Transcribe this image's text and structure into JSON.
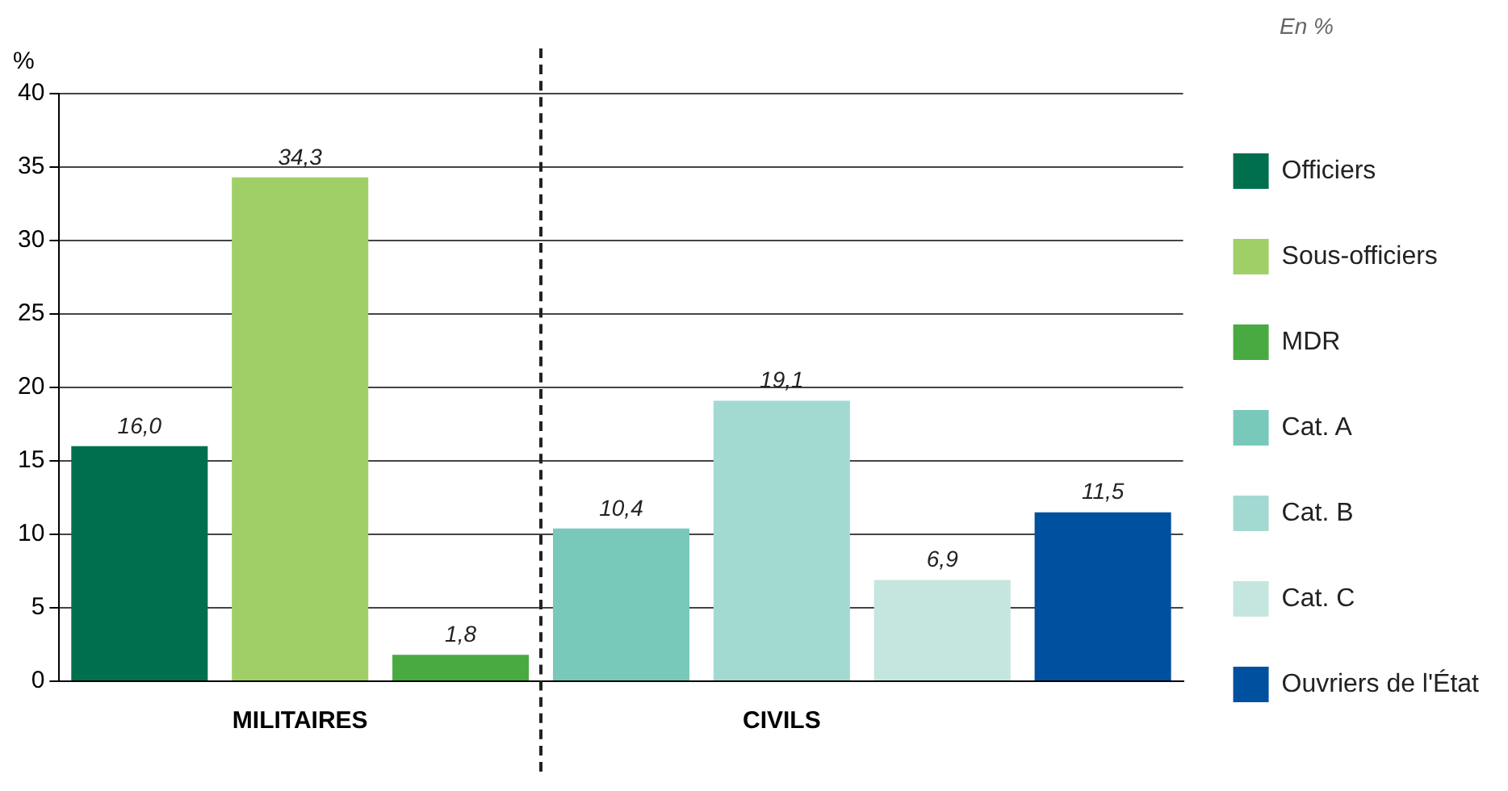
{
  "chart_data": {
    "type": "bar",
    "categories": [
      null,
      "MILITAIRES",
      null,
      null,
      "CIVILS",
      null,
      null
    ],
    "ylabel": "%",
    "annotations": [
      "En %"
    ],
    "ylim": [
      0,
      40
    ],
    "yticks": [
      0,
      5,
      10,
      15,
      20,
      25,
      30,
      35,
      40
    ],
    "grid": "y",
    "legend": "right",
    "series": [
      {
        "name": "Officiers",
        "color": "#006f4e",
        "values": [
          16.0,
          null,
          null,
          null,
          null,
          null,
          null
        ],
        "value_labels": [
          "16,0",
          null,
          null,
          null,
          null,
          null,
          null
        ]
      },
      {
        "name": "Sous-officiers",
        "color": "#a0cf67",
        "values": [
          null,
          34.3,
          null,
          null,
          null,
          null,
          null
        ],
        "value_labels": [
          null,
          "34,3",
          null,
          null,
          null,
          null,
          null
        ]
      },
      {
        "name": "MDR",
        "color": "#4aaa42",
        "values": [
          null,
          null,
          1.8,
          null,
          null,
          null,
          null
        ],
        "value_labels": [
          null,
          null,
          "1,8",
          null,
          null,
          null,
          null
        ]
      },
      {
        "name": "Cat. A",
        "color": "#78c9b9",
        "values": [
          null,
          null,
          null,
          10.4,
          null,
          null,
          null
        ],
        "value_labels": [
          null,
          null,
          null,
          "10,4",
          null,
          null,
          null
        ]
      },
      {
        "name": "Cat. B",
        "color": "#a2dad2",
        "values": [
          null,
          null,
          null,
          null,
          19.1,
          null,
          null
        ],
        "value_labels": [
          null,
          null,
          null,
          null,
          "19,1",
          null,
          null
        ]
      },
      {
        "name": "Cat. C",
        "color": "#c5e6df",
        "values": [
          null,
          null,
          null,
          null,
          null,
          6.9,
          null
        ],
        "value_labels": [
          null,
          null,
          null,
          null,
          null,
          "6,9",
          null
        ]
      },
      {
        "name": "Ouvriers de l'État",
        "color": "#0050a0",
        "values": [
          null,
          null,
          null,
          null,
          null,
          null,
          11.5
        ],
        "value_labels": [
          null,
          null,
          null,
          null,
          null,
          null,
          "11,5"
        ]
      }
    ]
  }
}
